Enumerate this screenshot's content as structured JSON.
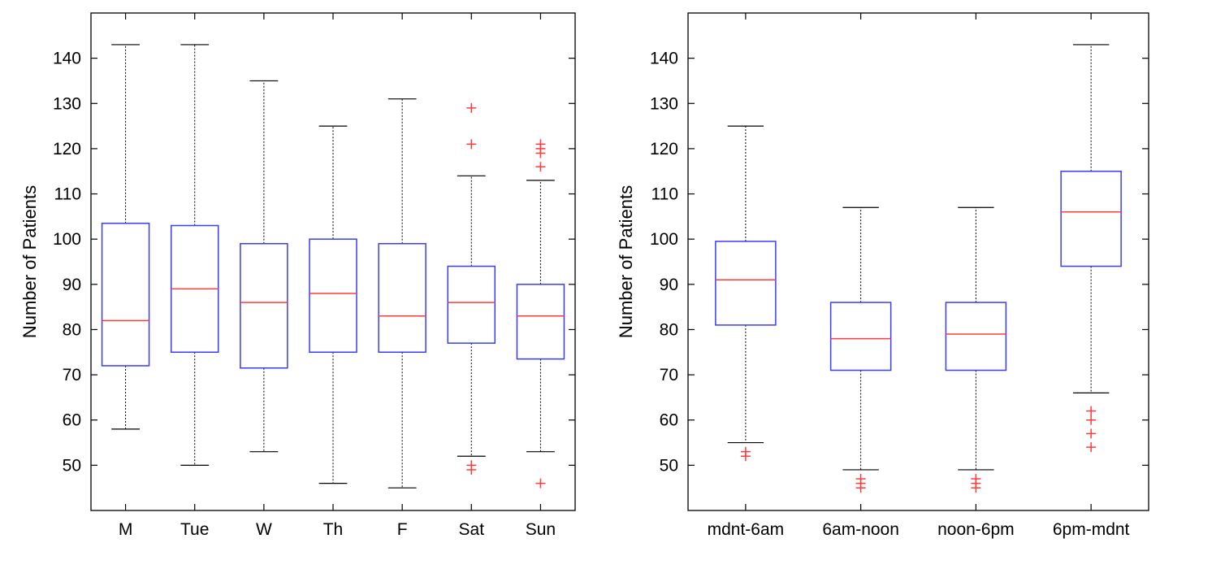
{
  "chart_data": [
    {
      "type": "boxplot",
      "title": "",
      "xlabel": "",
      "ylabel": "Number of Patients",
      "ylim": [
        40,
        150
      ],
      "yticks": [
        50,
        60,
        70,
        80,
        90,
        100,
        110,
        120,
        130,
        140
      ],
      "categories": [
        "M",
        "Tue",
        "W",
        "Th",
        "F",
        "Sat",
        "Sun"
      ],
      "boxes": [
        {
          "whisker_low": 58,
          "q1": 72,
          "median": 82,
          "q3": 103.5,
          "whisker_high": 143,
          "outliers": []
        },
        {
          "whisker_low": 50,
          "q1": 75,
          "median": 89,
          "q3": 103,
          "whisker_high": 143,
          "outliers": []
        },
        {
          "whisker_low": 53,
          "q1": 71.5,
          "median": 86,
          "q3": 99,
          "whisker_high": 135,
          "outliers": []
        },
        {
          "whisker_low": 46,
          "q1": 75,
          "median": 88,
          "q3": 100,
          "whisker_high": 125,
          "outliers": []
        },
        {
          "whisker_low": 45,
          "q1": 75,
          "median": 83,
          "q3": 99,
          "whisker_high": 131,
          "outliers": []
        },
        {
          "whisker_low": 52,
          "q1": 77,
          "median": 86,
          "q3": 94,
          "whisker_high": 114,
          "outliers": [
            49,
            50,
            121,
            129
          ]
        },
        {
          "whisker_low": 53,
          "q1": 73.5,
          "median": 83,
          "q3": 90,
          "whisker_high": 113,
          "outliers": [
            46,
            116,
            119,
            120,
            121
          ]
        }
      ]
    },
    {
      "type": "boxplot",
      "title": "",
      "xlabel": "",
      "ylabel": "Number of Patients",
      "ylim": [
        40,
        150
      ],
      "yticks": [
        50,
        60,
        70,
        80,
        90,
        100,
        110,
        120,
        130,
        140
      ],
      "categories": [
        "mdnt-6am",
        "6am-noon",
        "noon-6pm",
        "6pm-mdnt"
      ],
      "boxes": [
        {
          "whisker_low": 55,
          "q1": 81,
          "median": 91,
          "q3": 99.5,
          "whisker_high": 125,
          "outliers": [
            52,
            53
          ]
        },
        {
          "whisker_low": 49,
          "q1": 71,
          "median": 78,
          "q3": 86,
          "whisker_high": 107,
          "outliers": [
            45,
            46,
            47
          ]
        },
        {
          "whisker_low": 49,
          "q1": 71,
          "median": 79,
          "q3": 86,
          "whisker_high": 107,
          "outliers": [
            45,
            46,
            47
          ]
        },
        {
          "whisker_low": 66,
          "q1": 94,
          "median": 106,
          "q3": 115,
          "whisker_high": 143,
          "outliers": [
            54,
            57,
            60,
            62
          ]
        }
      ]
    }
  ]
}
